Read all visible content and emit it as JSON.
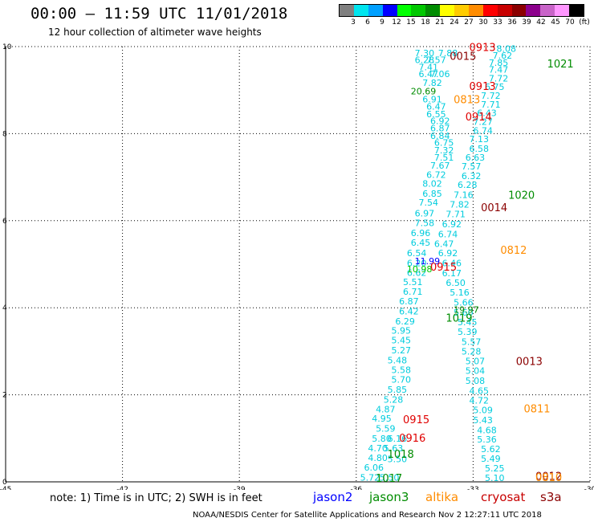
{
  "header": {
    "title": "00:00 – 11:59 UTC 11/01/2018",
    "subtitle": "12 hour collection of altimeter wave heights"
  },
  "colorbar": {
    "colors": [
      "#808080",
      "#00e5ee",
      "#00a0ff",
      "#0000ff",
      "#00ff00",
      "#00c800",
      "#008c00",
      "#ffff00",
      "#ffcc00",
      "#ff8c00",
      "#ff0000",
      "#c80000",
      "#8b0000",
      "#8c008c",
      "#c864c8",
      "#ff96ff",
      "#000000"
    ],
    "labels": [
      "3",
      "6",
      "9",
      "12",
      "15",
      "18",
      "21",
      "24",
      "27",
      "30",
      "33",
      "36",
      "39",
      "42",
      "45",
      "70",
      "(ft)"
    ]
  },
  "chart_data": {
    "type": "scatter",
    "title": "00:00 – 11:59 UTC 11/01/2018",
    "subtitle": "12 hour collection of altimeter wave heights",
    "xlim": [
      -45,
      -30
    ],
    "ylim": [
      0,
      10
    ],
    "xticks": [
      -45,
      -42,
      -39,
      -36,
      -33,
      -30
    ],
    "xtick_labels": [
      "-45",
      "-42",
      "-39",
      "-36",
      "-33",
      "-30"
    ],
    "yticks": [
      0,
      2,
      4,
      6,
      8,
      10
    ],
    "ytick_labels": [
      "0",
      "2",
      "4",
      "6",
      "8",
      "10"
    ],
    "grid": true,
    "series": [
      {
        "name": "jason2",
        "color": "#0000ff"
      },
      {
        "name": "jason3",
        "color": "#008c00"
      },
      {
        "name": "altika",
        "color": "#ff8c00"
      },
      {
        "name": "cryosat",
        "color": "#c80000"
      },
      {
        "name": "s3a",
        "color": "#8b0000"
      }
    ],
    "points": [
      {
        "x": -34.5,
        "y": 9.78,
        "v": "7.30",
        "c": "#00ccdd"
      },
      {
        "x": -33.9,
        "y": 9.78,
        "v": "7.88",
        "c": "#00ccdd"
      },
      {
        "x": -34.5,
        "y": 9.62,
        "v": "6.28",
        "c": "#00ccdd"
      },
      {
        "x": -34.2,
        "y": 9.62,
        "v": "7.57",
        "c": "#00ccdd"
      },
      {
        "x": -34.4,
        "y": 9.46,
        "v": "7.41",
        "c": "#00ccdd"
      },
      {
        "x": -34.4,
        "y": 9.3,
        "v": "6.47",
        "c": "#00ccdd"
      },
      {
        "x": -34.1,
        "y": 9.3,
        "v": "7.06",
        "c": "#00ccdd"
      },
      {
        "x": -34.3,
        "y": 9.1,
        "v": "7.82",
        "c": "#00ccdd"
      },
      {
        "x": -34.6,
        "y": 8.9,
        "v": "20.69",
        "c": "#008c00"
      },
      {
        "x": -34.3,
        "y": 8.72,
        "v": "6.91",
        "c": "#00ccdd"
      },
      {
        "x": -34.2,
        "y": 8.55,
        "v": "6.47",
        "c": "#00ccdd"
      },
      {
        "x": -34.2,
        "y": 8.38,
        "v": "6.55",
        "c": "#00ccdd"
      },
      {
        "x": -34.1,
        "y": 8.22,
        "v": "6.92",
        "c": "#00ccdd"
      },
      {
        "x": -34.1,
        "y": 8.05,
        "v": "6.87",
        "c": "#00ccdd"
      },
      {
        "x": -34.1,
        "y": 7.88,
        "v": "6.84",
        "c": "#00ccdd"
      },
      {
        "x": -34.0,
        "y": 7.72,
        "v": "6.75",
        "c": "#00ccdd"
      },
      {
        "x": -34.0,
        "y": 7.55,
        "v": "7.32",
        "c": "#00ccdd"
      },
      {
        "x": -34.0,
        "y": 7.38,
        "v": "7.51",
        "c": "#00ccdd"
      },
      {
        "x": -34.1,
        "y": 7.2,
        "v": "7.67",
        "c": "#00ccdd"
      },
      {
        "x": -34.2,
        "y": 6.98,
        "v": "6.72",
        "c": "#00ccdd"
      },
      {
        "x": -34.3,
        "y": 6.78,
        "v": "8.02",
        "c": "#00ccdd"
      },
      {
        "x": -34.3,
        "y": 6.55,
        "v": "6.85",
        "c": "#00ccdd"
      },
      {
        "x": -34.4,
        "y": 6.35,
        "v": "7.54",
        "c": "#00ccdd"
      },
      {
        "x": -34.5,
        "y": 6.1,
        "v": "6.97",
        "c": "#00ccdd"
      },
      {
        "x": -34.5,
        "y": 5.88,
        "v": "7.58",
        "c": "#00ccdd"
      },
      {
        "x": -34.6,
        "y": 5.65,
        "v": "6.96",
        "c": "#00ccdd"
      },
      {
        "x": -34.6,
        "y": 5.42,
        "v": "6.45",
        "c": "#00ccdd"
      },
      {
        "x": -34.7,
        "y": 5.18,
        "v": "6.54",
        "c": "#00ccdd"
      },
      {
        "x": -34.7,
        "y": 4.95,
        "v": "6.20",
        "c": "#00ccdd"
      },
      {
        "x": -34.7,
        "y": 4.73,
        "v": "6.62",
        "c": "#00ccdd"
      },
      {
        "x": -34.8,
        "y": 4.52,
        "v": "5.51",
        "c": "#00ccdd"
      },
      {
        "x": -34.8,
        "y": 4.3,
        "v": "6.71",
        "c": "#00ccdd"
      },
      {
        "x": -34.9,
        "y": 4.08,
        "v": "6.87",
        "c": "#00ccdd"
      },
      {
        "x": -34.9,
        "y": 3.85,
        "v": "6.42",
        "c": "#00ccdd"
      },
      {
        "x": -35.0,
        "y": 3.62,
        "v": "6.29",
        "c": "#00ccdd"
      },
      {
        "x": -35.1,
        "y": 3.4,
        "v": "5.95",
        "c": "#00ccdd"
      },
      {
        "x": -35.1,
        "y": 3.18,
        "v": "5.45",
        "c": "#00ccdd"
      },
      {
        "x": -35.1,
        "y": 2.95,
        "v": "5.27",
        "c": "#00ccdd"
      },
      {
        "x": -35.2,
        "y": 2.72,
        "v": "5.48",
        "c": "#00ccdd"
      },
      {
        "x": -35.1,
        "y": 2.5,
        "v": "5.58",
        "c": "#00ccdd"
      },
      {
        "x": -35.1,
        "y": 2.28,
        "v": "5.70",
        "c": "#00ccdd"
      },
      {
        "x": -35.2,
        "y": 2.05,
        "v": "5.85",
        "c": "#00ccdd"
      },
      {
        "x": -35.3,
        "y": 1.82,
        "v": "5.28",
        "c": "#00ccdd"
      },
      {
        "x": -35.5,
        "y": 1.6,
        "v": "4.87",
        "c": "#00ccdd"
      },
      {
        "x": -35.6,
        "y": 1.38,
        "v": "4.95",
        "c": "#00ccdd"
      },
      {
        "x": -35.5,
        "y": 1.15,
        "v": "5.59",
        "c": "#00ccdd"
      },
      {
        "x": -35.6,
        "y": 0.92,
        "v": "5.80",
        "c": "#00ccdd"
      },
      {
        "x": -35.7,
        "y": 0.7,
        "v": "4.70",
        "c": "#00ccdd"
      },
      {
        "x": -35.7,
        "y": 0.48,
        "v": "4.80",
        "c": "#00ccdd"
      },
      {
        "x": -35.8,
        "y": 0.26,
        "v": "6.06",
        "c": "#00ccdd"
      },
      {
        "x": -35.9,
        "y": 0.03,
        "v": "5.72",
        "c": "#00ccdd"
      },
      {
        "x": -35.4,
        "y": 0.03,
        "v": "5.50",
        "c": "#00ccdd"
      },
      {
        "x": -35.3,
        "y": 0.7,
        "v": "5.63",
        "c": "#00ccdd"
      },
      {
        "x": -35.2,
        "y": 0.92,
        "v": "6.16",
        "c": "#00ccdd"
      },
      {
        "x": -35.2,
        "y": 0.45,
        "v": "5.50",
        "c": "#00ccdd"
      },
      {
        "x": -32.4,
        "y": 9.88,
        "v": "8.08",
        "c": "#00ccdd"
      },
      {
        "x": -32.5,
        "y": 9.72,
        "v": "7.62",
        "c": "#00ccdd"
      },
      {
        "x": -32.6,
        "y": 9.56,
        "v": "7.85",
        "c": "#00ccdd"
      },
      {
        "x": -32.6,
        "y": 9.4,
        "v": "7.47",
        "c": "#00ccdd"
      },
      {
        "x": -32.6,
        "y": 9.2,
        "v": "7.72",
        "c": "#00ccdd"
      },
      {
        "x": -32.7,
        "y": 9.0,
        "v": "6.75",
        "c": "#00ccdd"
      },
      {
        "x": -32.8,
        "y": 8.8,
        "v": "7.72",
        "c": "#00ccdd"
      },
      {
        "x": -32.8,
        "y": 8.6,
        "v": "7.71",
        "c": "#00ccdd"
      },
      {
        "x": -32.9,
        "y": 8.4,
        "v": "6.43",
        "c": "#00ccdd"
      },
      {
        "x": -33.0,
        "y": 8.2,
        "v": "7.27",
        "c": "#00ccdd"
      },
      {
        "x": -33.0,
        "y": 8.0,
        "v": "6.74",
        "c": "#00ccdd"
      },
      {
        "x": -33.1,
        "y": 7.8,
        "v": "7.13",
        "c": "#00ccdd"
      },
      {
        "x": -33.1,
        "y": 7.58,
        "v": "6.58",
        "c": "#00ccdd"
      },
      {
        "x": -33.2,
        "y": 7.38,
        "v": "6.63",
        "c": "#00ccdd"
      },
      {
        "x": -33.3,
        "y": 7.18,
        "v": "7.57",
        "c": "#00ccdd"
      },
      {
        "x": -33.3,
        "y": 6.96,
        "v": "6.32",
        "c": "#00ccdd"
      },
      {
        "x": -33.4,
        "y": 6.75,
        "v": "6.28",
        "c": "#00ccdd"
      },
      {
        "x": -33.5,
        "y": 6.52,
        "v": "7.16",
        "c": "#00ccdd"
      },
      {
        "x": -33.6,
        "y": 6.3,
        "v": "7.82",
        "c": "#00ccdd"
      },
      {
        "x": -33.7,
        "y": 6.08,
        "v": "7.71",
        "c": "#00ccdd"
      },
      {
        "x": -33.8,
        "y": 5.85,
        "v": "6.92",
        "c": "#00ccdd"
      },
      {
        "x": -33.9,
        "y": 5.62,
        "v": "6.74",
        "c": "#00ccdd"
      },
      {
        "x": -34.0,
        "y": 5.4,
        "v": "6.47",
        "c": "#00ccdd"
      },
      {
        "x": -33.9,
        "y": 5.18,
        "v": "6.92",
        "c": "#00ccdd"
      },
      {
        "x": -33.8,
        "y": 4.95,
        "v": "6.46",
        "c": "#00ccdd"
      },
      {
        "x": -33.8,
        "y": 4.72,
        "v": "6.17",
        "c": "#00ccdd"
      },
      {
        "x": -33.7,
        "y": 4.5,
        "v": "6.50",
        "c": "#00ccdd"
      },
      {
        "x": -33.6,
        "y": 4.28,
        "v": "5.16",
        "c": "#00ccdd"
      },
      {
        "x": -33.5,
        "y": 4.05,
        "v": "5.66",
        "c": "#00ccdd"
      },
      {
        "x": -33.5,
        "y": 3.82,
        "v": "5.60",
        "c": "#00ccdd"
      },
      {
        "x": -33.4,
        "y": 3.6,
        "v": "5.45",
        "c": "#00ccdd"
      },
      {
        "x": -33.4,
        "y": 3.38,
        "v": "5.39",
        "c": "#00ccdd"
      },
      {
        "x": -33.3,
        "y": 3.15,
        "v": "5.57",
        "c": "#00ccdd"
      },
      {
        "x": -33.3,
        "y": 2.92,
        "v": "5.28",
        "c": "#00ccdd"
      },
      {
        "x": -33.2,
        "y": 2.7,
        "v": "5.07",
        "c": "#00ccdd"
      },
      {
        "x": -33.2,
        "y": 2.48,
        "v": "5.04",
        "c": "#00ccdd"
      },
      {
        "x": -33.2,
        "y": 2.25,
        "v": "5.08",
        "c": "#00ccdd"
      },
      {
        "x": -33.1,
        "y": 2.02,
        "v": "4.65",
        "c": "#00ccdd"
      },
      {
        "x": -33.1,
        "y": 1.8,
        "v": "4.72",
        "c": "#00ccdd"
      },
      {
        "x": -33.0,
        "y": 1.58,
        "v": "5.09",
        "c": "#00ccdd"
      },
      {
        "x": -33.0,
        "y": 1.35,
        "v": "5.43",
        "c": "#00ccdd"
      },
      {
        "x": -32.9,
        "y": 1.12,
        "v": "4.68",
        "c": "#00ccdd"
      },
      {
        "x": -32.9,
        "y": 0.9,
        "v": "5.36",
        "c": "#00ccdd"
      },
      {
        "x": -32.8,
        "y": 0.68,
        "v": "5.62",
        "c": "#00ccdd"
      },
      {
        "x": -32.8,
        "y": 0.46,
        "v": "5.49",
        "c": "#00ccdd"
      },
      {
        "x": -32.7,
        "y": 0.24,
        "v": "5.25",
        "c": "#00ccdd"
      },
      {
        "x": -32.7,
        "y": 0.02,
        "v": "5.10",
        "c": "#00ccdd"
      },
      {
        "x": -34.5,
        "y": 5.0,
        "v": "11.99",
        "c": "#0000ff"
      },
      {
        "x": -34.7,
        "y": 4.82,
        "v": "10.98",
        "c": "#00c800"
      },
      {
        "x": -33.5,
        "y": 3.88,
        "v": "19.97",
        "c": "#008c00"
      }
    ],
    "labels": [
      {
        "x": -33.1,
        "y": 9.9,
        "t": "0913",
        "c": "#e00000"
      },
      {
        "x": -33.6,
        "y": 9.7,
        "t": "0015",
        "c": "#8b0000"
      },
      {
        "x": -31.1,
        "y": 9.52,
        "t": "1021",
        "c": "#008c00"
      },
      {
        "x": -33.1,
        "y": 9.0,
        "t": "0913",
        "c": "#e00000"
      },
      {
        "x": -33.5,
        "y": 8.7,
        "t": "0813",
        "c": "#ff8c00"
      },
      {
        "x": -33.2,
        "y": 8.3,
        "t": "0914",
        "c": "#e00000"
      },
      {
        "x": -32.1,
        "y": 6.5,
        "t": "1020",
        "c": "#008c00"
      },
      {
        "x": -32.8,
        "y": 6.22,
        "t": "0014",
        "c": "#8b0000"
      },
      {
        "x": -32.3,
        "y": 5.24,
        "t": "0812",
        "c": "#ff8c00"
      },
      {
        "x": -34.1,
        "y": 4.85,
        "t": "0915",
        "c": "#e00000"
      },
      {
        "x": -33.7,
        "y": 3.68,
        "t": "1019",
        "c": "#008c00"
      },
      {
        "x": -31.9,
        "y": 2.68,
        "t": "0013",
        "c": "#8b0000"
      },
      {
        "x": -31.7,
        "y": 1.6,
        "t": "0811",
        "c": "#ff8c00"
      },
      {
        "x": -34.8,
        "y": 1.35,
        "t": "0915",
        "c": "#e00000"
      },
      {
        "x": -34.9,
        "y": 0.92,
        "t": "0916",
        "c": "#e00000"
      },
      {
        "x": -35.2,
        "y": 0.55,
        "t": "1018",
        "c": "#008c00"
      },
      {
        "x": -35.5,
        "y": 0.0,
        "t": "1017",
        "c": "#008c00"
      },
      {
        "x": -31.4,
        "y": 0.05,
        "t": "0012",
        "c": "#8b0000"
      },
      {
        "x": -31.4,
        "y": 0.02,
        "t": "0810",
        "c": "#ff8c00"
      }
    ]
  },
  "note": "note: 1) Time is in UTC; 2) SWH is in feet",
  "legend": [
    {
      "label": "jason2",
      "color": "#0000ff"
    },
    {
      "label": "jason3",
      "color": "#008c00"
    },
    {
      "label": "altika",
      "color": "#ff8c00"
    },
    {
      "label": "cryosat",
      "color": "#c80000"
    },
    {
      "label": "s3a",
      "color": "#8b0000"
    }
  ],
  "footer": "NOAA/NESDIS Center for Satellite Applications and Research   Nov  2 12:27:11 UTC 2018"
}
